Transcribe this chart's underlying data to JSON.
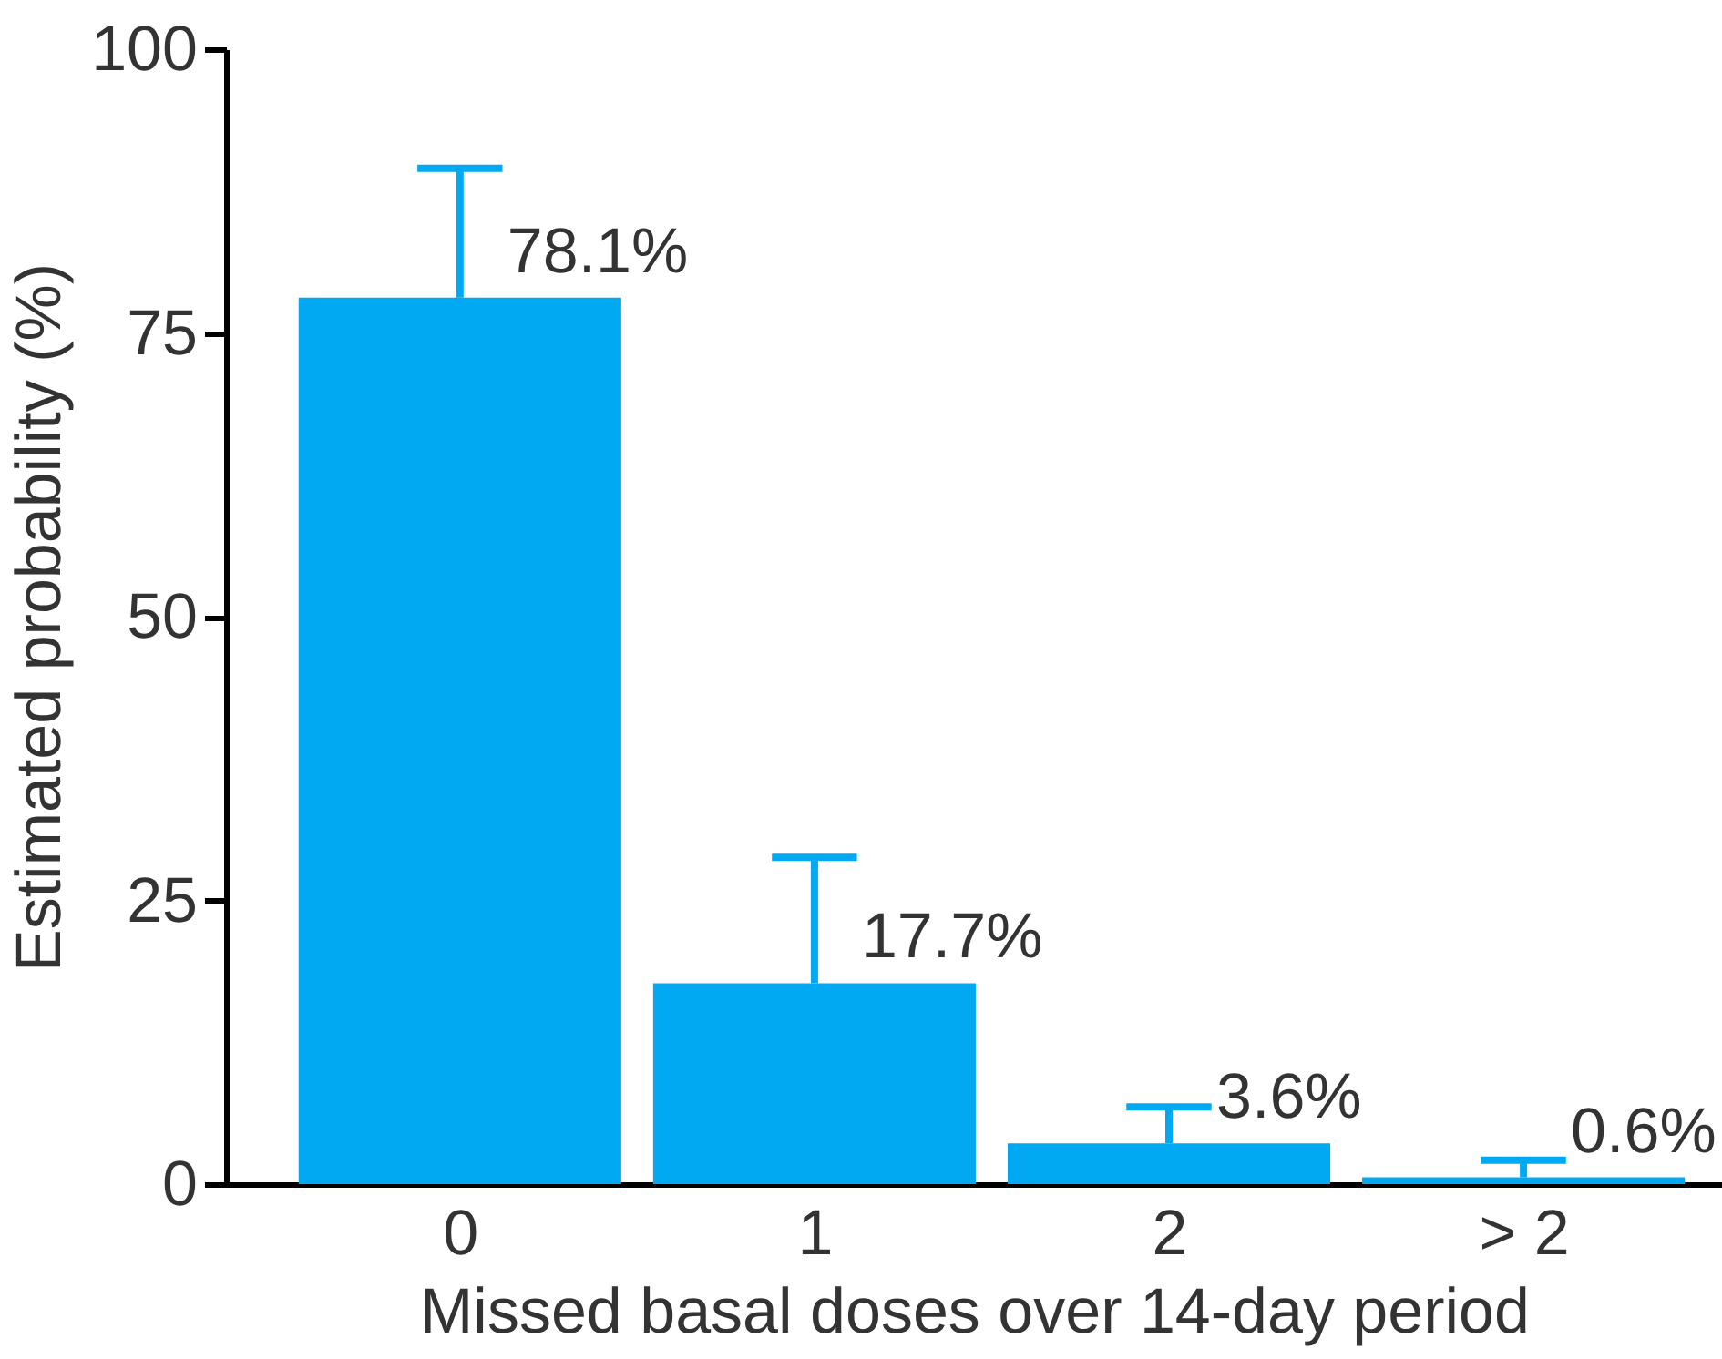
{
  "chart_data": {
    "type": "bar",
    "xlabel": "Missed basal doses over 14-day period",
    "ylabel": "Estimated probability (%)",
    "categories": [
      "0",
      "1",
      "2",
      "> 2"
    ],
    "values": [
      78.1,
      17.7,
      3.6,
      0.6
    ],
    "color": "#00a9f1",
    "errors": [
      [
        78.1,
        89.5
      ],
      [
        17.7,
        28.8
      ],
      [
        3.6,
        6.8
      ],
      [
        0.6,
        2.1
      ]
    ],
    "value_labels": [
      "78.1%",
      "17.7%",
      "3.6%",
      "0.6%"
    ],
    "ylim": [
      0,
      100
    ],
    "yticks": [
      0,
      25,
      50,
      75,
      100
    ],
    "grid": false
  }
}
